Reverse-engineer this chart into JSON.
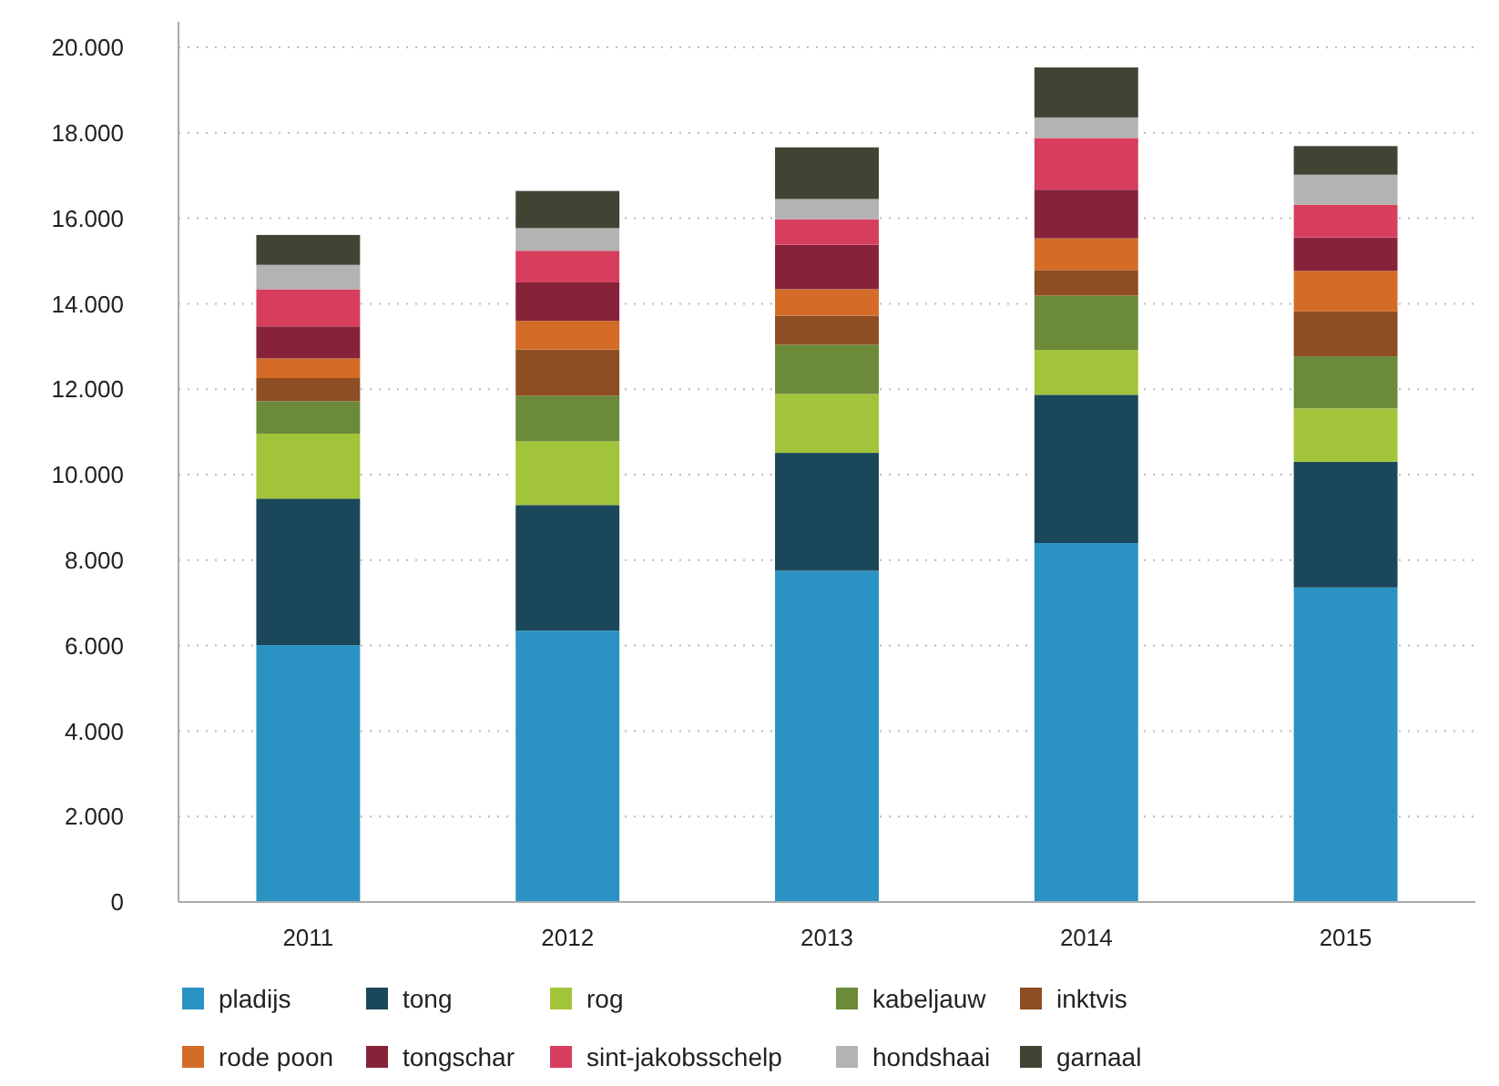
{
  "chart_data": {
    "type": "bar",
    "stacked": true,
    "categories": [
      "2011",
      "2012",
      "2013",
      "2014",
      "2015"
    ],
    "ylim": [
      0,
      20000
    ],
    "yticks": [
      {
        "value": 0,
        "label": "0"
      },
      {
        "value": 2000,
        "label": "2.000"
      },
      {
        "value": 4000,
        "label": "4.000"
      },
      {
        "value": 6000,
        "label": "6.000"
      },
      {
        "value": 8000,
        "label": "8.000"
      },
      {
        "value": 10000,
        "label": "10.000"
      },
      {
        "value": 12000,
        "label": "12.000"
      },
      {
        "value": 14000,
        "label": "14.000"
      },
      {
        "value": 16000,
        "label": "16.000"
      },
      {
        "value": 18000,
        "label": "18.000"
      },
      {
        "value": 20000,
        "label": "20.000"
      }
    ],
    "grid": "y",
    "legend": "bottom",
    "series": [
      {
        "name": "pladijs",
        "color": "#2a93c3",
        "values": [
          6010,
          6350,
          7750,
          8400,
          7360
        ]
      },
      {
        "name": "tong",
        "color": "#1b475b",
        "values": [
          3430,
          2940,
          2760,
          3470,
          2940
        ]
      },
      {
        "name": "rog",
        "color": "#a2c43a",
        "values": [
          1520,
          1490,
          1380,
          1050,
          1250
        ]
      },
      {
        "name": "kabeljauw",
        "color": "#6b8a3a",
        "values": [
          760,
          1070,
          1150,
          1270,
          1220
        ]
      },
      {
        "name": "inktvis",
        "color": "#8e4d22",
        "values": [
          540,
          1080,
          680,
          600,
          1050
        ]
      },
      {
        "name": "rode poon",
        "color": "#d46c27",
        "values": [
          460,
          670,
          620,
          740,
          950
        ]
      },
      {
        "name": "tongschar",
        "color": "#86233a",
        "values": [
          750,
          900,
          1040,
          1140,
          780
        ]
      },
      {
        "name": "sint-jakobsschelp",
        "color": "#d73e5e",
        "values": [
          870,
          740,
          600,
          1210,
          770
        ]
      },
      {
        "name": "hondshaai",
        "color": "#b3b3b3",
        "values": [
          570,
          530,
          470,
          480,
          700
        ]
      },
      {
        "name": "garnaal",
        "color": "#434334",
        "values": [
          700,
          870,
          1210,
          1170,
          670
        ]
      }
    ]
  }
}
